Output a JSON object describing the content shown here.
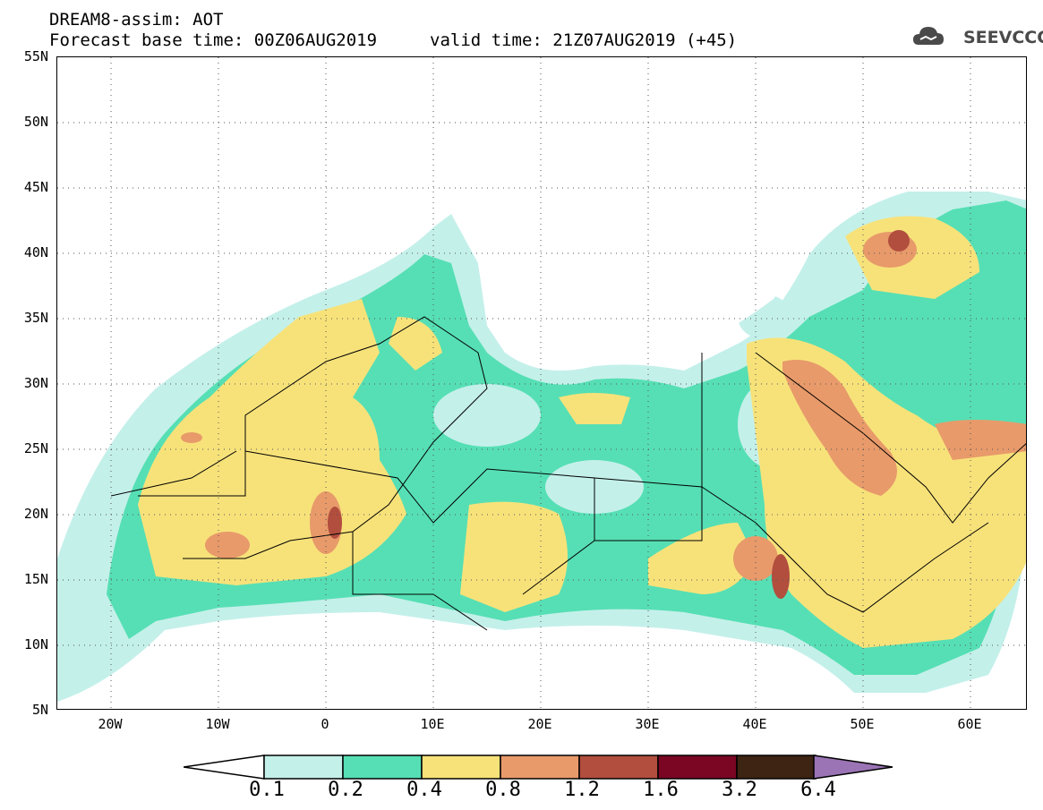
{
  "title": {
    "line1": "DREAM8-assim: AOT",
    "line2": "Forecast base time: 00Z06AUG2019",
    "valid": "valid time: 21Z07AUG2019 (+45)"
  },
  "logo": {
    "text": "SEEVCCC",
    "icon": "cloud-logo-icon"
  },
  "axes": {
    "lat_labels": [
      "55N",
      "50N",
      "45N",
      "40N",
      "35N",
      "30N",
      "25N",
      "20N",
      "15N",
      "10N",
      "5N"
    ],
    "lon_labels": [
      "20W",
      "10W",
      "0",
      "10E",
      "20E",
      "30E",
      "40E",
      "50E",
      "60E"
    ]
  },
  "colorbar": {
    "labels": [
      "0.1",
      "0.2",
      "0.4",
      "0.8",
      "1.2",
      "1.6",
      "3.2",
      "6.4"
    ],
    "colors": [
      "#c4f0ea",
      "#56dfb4",
      "#f7e27a",
      "#e89a6a",
      "#b14e3e",
      "#7a0624",
      "#3d2413",
      "#9a74b4"
    ],
    "under_color": "#ffffff",
    "over_color": "#9a74b4"
  },
  "map": {
    "lon_range": [
      -25,
      65
    ],
    "lat_range": [
      5,
      55
    ],
    "grid": "dotted"
  }
}
